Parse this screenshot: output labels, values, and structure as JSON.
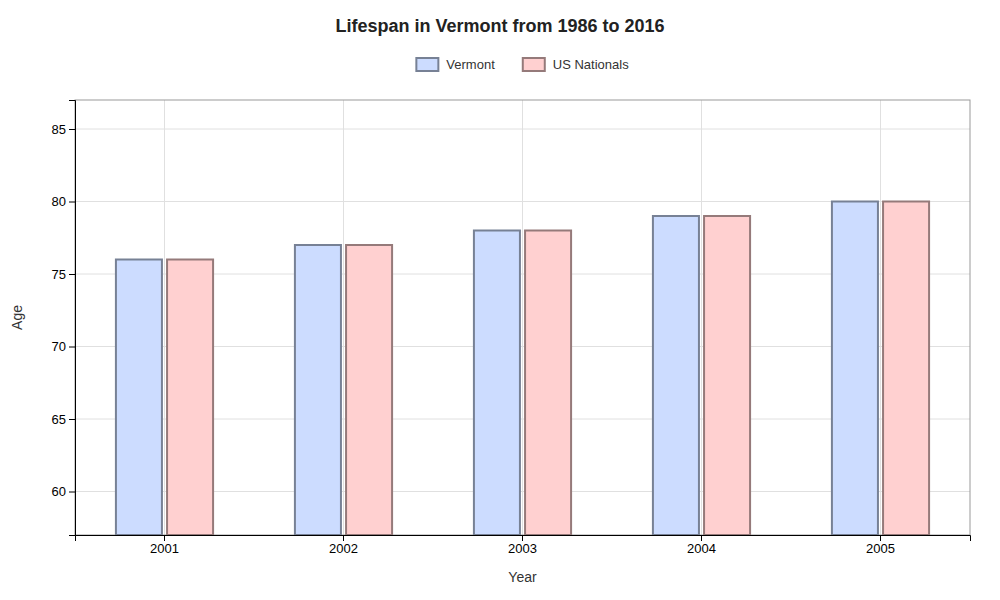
{
  "chart_data": {
    "type": "bar",
    "title": "Lifespan in Vermont from 1986 to 2016",
    "x_label": "Year",
    "y_label": "Age",
    "categories": [
      "2001",
      "2002",
      "2003",
      "2004",
      "2005"
    ],
    "series": [
      {
        "name": "Vermont",
        "color": "#ccdcff",
        "values": [
          76,
          77,
          78,
          79,
          80
        ]
      },
      {
        "name": "US Nationals",
        "color": "#ffd0d0",
        "values": [
          76,
          77,
          78,
          79,
          80
        ]
      }
    ],
    "ylim": [
      57,
      87
    ],
    "yticks": [
      60,
      65,
      70,
      75,
      80,
      85
    ],
    "grid": true,
    "legend": "top"
  }
}
